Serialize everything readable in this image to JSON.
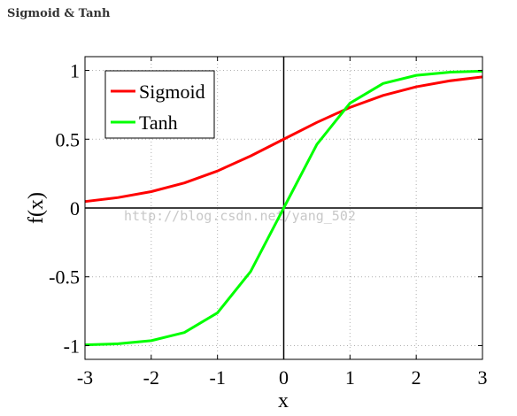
{
  "page": {
    "heading": "Sigmoid & Tanh"
  },
  "watermark": "http://blog.csdn.net/yang_502",
  "chart_data": {
    "type": "line",
    "title": "",
    "xlabel": "x",
    "ylabel": "f(x)",
    "xlim": [
      -3,
      3
    ],
    "ylim": [
      -1.1,
      1.1
    ],
    "xticks": [
      "-3",
      "-2",
      "-1",
      "0",
      "1",
      "2",
      "3"
    ],
    "yticks": [
      "-1",
      "-0.5",
      "0",
      "0.5",
      "1"
    ],
    "grid": true,
    "legend_position": "top-left",
    "x": [
      -3,
      -2.5,
      -2,
      -1.5,
      -1,
      -0.5,
      0,
      0.5,
      1,
      1.5,
      2,
      2.5,
      3
    ],
    "series": [
      {
        "name": "Sigmoid",
        "color": "#ff0000",
        "values": [
          0.047,
          0.076,
          0.119,
          0.182,
          0.269,
          0.378,
          0.5,
          0.622,
          0.731,
          0.818,
          0.881,
          0.924,
          0.953
        ]
      },
      {
        "name": "Tanh",
        "color": "#00ff00",
        "values": [
          -0.995,
          -0.987,
          -0.964,
          -0.905,
          -0.762,
          -0.462,
          0,
          0.462,
          0.762,
          0.905,
          0.964,
          0.987,
          0.995
        ]
      }
    ]
  }
}
